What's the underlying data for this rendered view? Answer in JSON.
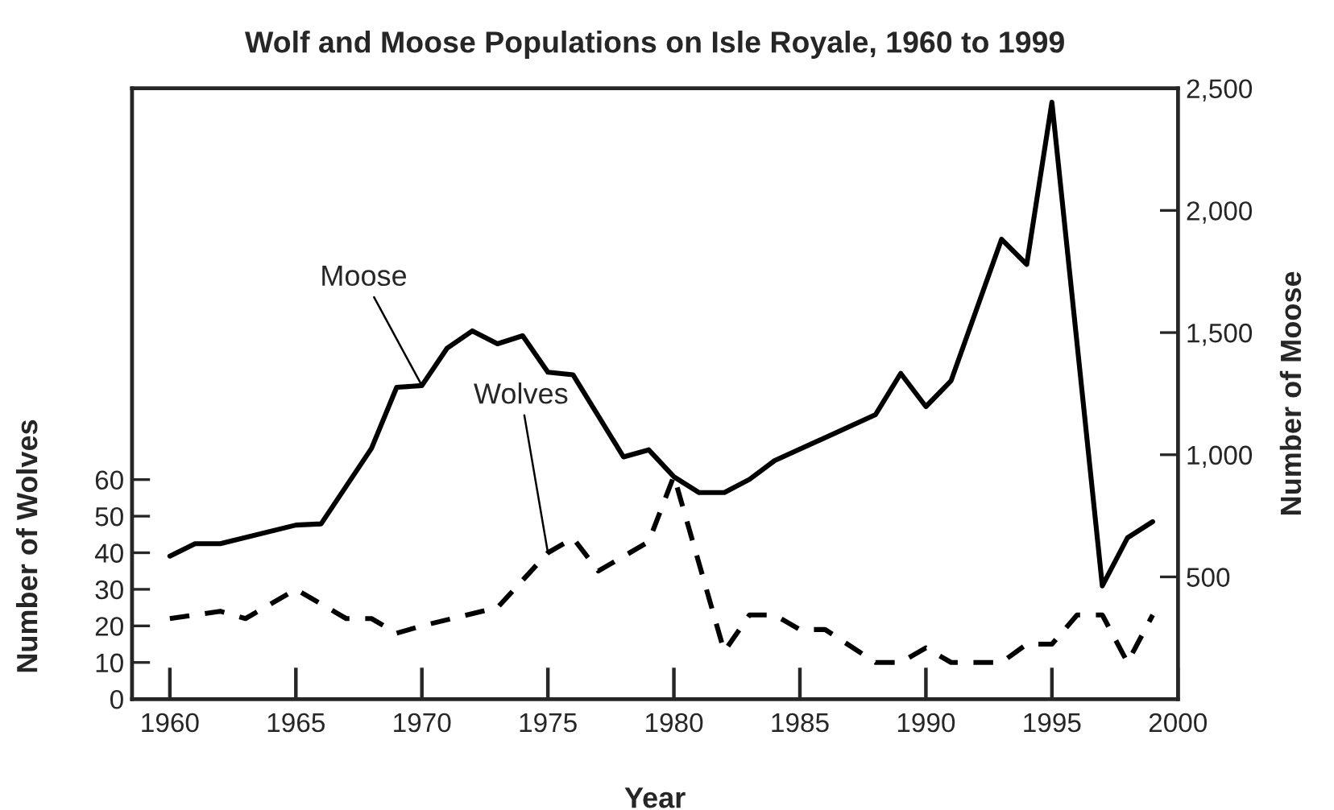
{
  "chart_data": {
    "type": "line",
    "title": "Wolf and Moose Populations on Isle Royale, 1960 to 1999",
    "xlabel": "Year",
    "ylabel": "Number of Wolves",
    "y2label": "Number of Moose",
    "xlim": [
      1958.5,
      2000
    ],
    "xticks": [
      1960,
      1965,
      1970,
      1975,
      1980,
      1985,
      1990,
      1995,
      2000
    ],
    "ylim": [
      0,
      167
    ],
    "yticks": [
      0,
      10,
      20,
      30,
      40,
      50,
      60
    ],
    "y2lim": [
      0,
      2500
    ],
    "y2ticks": [
      {
        "value": 500,
        "label": "500"
      },
      {
        "value": 1000,
        "label": "1,000"
      },
      {
        "value": 1500,
        "label": "1,500"
      },
      {
        "value": 2000,
        "label": "2,000"
      },
      {
        "value": 2500,
        "label": "2,500"
      }
    ],
    "series": [
      {
        "name": "Moose",
        "color": "#000000",
        "axis": "y2",
        "line_style": "solid",
        "x": [
          1960,
          1961,
          1962,
          1965,
          1966,
          1968,
          1969,
          1970,
          1971,
          1972,
          1973,
          1974,
          1975,
          1976,
          1978,
          1979,
          1980,
          1981,
          1982,
          1983,
          1984,
          1988,
          1989,
          1990,
          1991,
          1993,
          1994,
          1995,
          1997,
          1998,
          1999
        ],
        "values": [
          585,
          636,
          636,
          712,
          717,
          1026,
          1276,
          1283,
          1436,
          1507,
          1454,
          1487,
          1338,
          1327,
          991,
          1020,
          910,
          845,
          845,
          899,
          976,
          1164,
          1333,
          1197,
          1303,
          1882,
          1779,
          2443,
          463,
          660,
          726
        ]
      },
      {
        "name": "Wolves",
        "color": "#000000",
        "axis": "y",
        "line_style": "dashed",
        "x": [
          1960,
          1961,
          1962,
          1963,
          1965,
          1967,
          1968,
          1969,
          1970,
          1973,
          1975,
          1976,
          1977,
          1979,
          1980,
          1982,
          1983,
          1984,
          1985,
          1986,
          1988,
          1989,
          1990,
          1991,
          1993,
          1994,
          1995,
          1996,
          1997,
          1998,
          1999
        ],
        "values": [
          22,
          23,
          24,
          22,
          30,
          22,
          22,
          18,
          20,
          25,
          40,
          44,
          35,
          43,
          61,
          13,
          23,
          23,
          19,
          19,
          10,
          10,
          14,
          10,
          10,
          15,
          15,
          23,
          23,
          10,
          23
        ]
      }
    ]
  }
}
